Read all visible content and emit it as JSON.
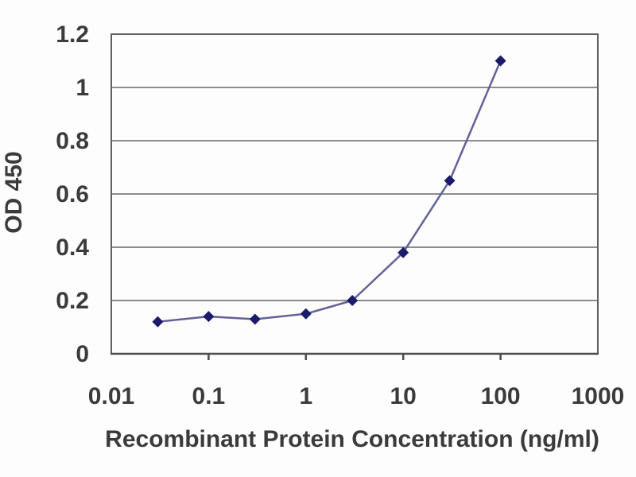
{
  "chart_data": {
    "type": "line",
    "title": "",
    "xlabel": "Recombinant Protein Concentration (ng/ml)",
    "ylabel": "OD 450",
    "x_scale": "log",
    "x": [
      0.03,
      0.1,
      0.3,
      1,
      3,
      10,
      30,
      100
    ],
    "y": [
      0.12,
      0.14,
      0.13,
      0.15,
      0.2,
      0.38,
      0.65,
      1.1
    ],
    "xlim": [
      0.01,
      1000
    ],
    "ylim": [
      0,
      1.2
    ],
    "x_ticks": [
      0.01,
      0.1,
      1,
      10,
      100,
      1000
    ],
    "x_tick_labels": [
      "0.01",
      "0.1",
      "1",
      "10",
      "100",
      "1000"
    ],
    "y_ticks": [
      0,
      0.2,
      0.4,
      0.6,
      0.8,
      1,
      1.2
    ],
    "y_tick_labels": [
      "0",
      "0.2",
      "0.4",
      "0.6",
      "0.8",
      "1",
      "1.2"
    ],
    "grid": "horizontal",
    "legend": "none",
    "marker_shape": "diamond",
    "colors": {
      "marker": "#1b1b6b",
      "line": "#62629a",
      "grid": "#8c8c8c",
      "grid_top": "#a8a8a8",
      "frame": "#5e5e5e",
      "axis_bottom": "#4c4c4c",
      "tick": "#4c4c4c",
      "text": "#3b3b3b",
      "background": "#fdfdfd"
    }
  }
}
